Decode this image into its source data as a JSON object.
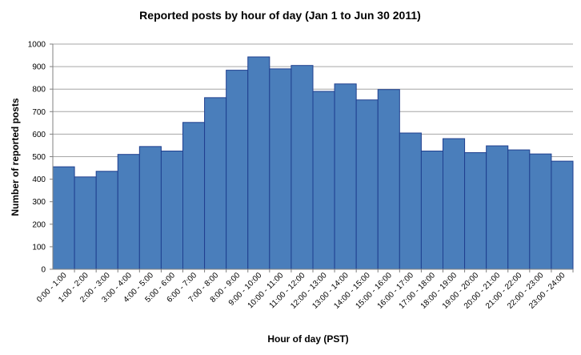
{
  "chart_data": {
    "type": "bar",
    "title": "Reported posts by hour of day (Jan 1 to Jun 30 2011)",
    "xlabel": "Hour of day (PST)",
    "ylabel": "Number of reported posts",
    "ylim": [
      0,
      1000
    ],
    "yticks": [
      "0",
      "100",
      "200",
      "300",
      "400",
      "500",
      "600",
      "700",
      "800",
      "900",
      "1000"
    ],
    "grid": true,
    "legend": "none",
    "bar_color": "#4a7ebb",
    "bar_edge_color": "#1f3f8f",
    "categories": [
      "0:00 - 1:00",
      "1:00 - 2:00",
      "2:00 - 3:00",
      "3:00 - 4:00",
      "4:00 - 5:00",
      "5:00 - 6:00",
      "6:00 - 7:00",
      "7:00 - 8:00",
      "8:00 - 9:00",
      "9:00 - 10:00",
      "10:00 - 11:00",
      "11:00 - 12:00",
      "12:00 - 13:00",
      "13:00 - 14:00",
      "14:00 - 15:00",
      "15:00 - 16:00",
      "16:00 - 17:00",
      "17:00 - 18:00",
      "18:00 - 19:00",
      "19:00 - 20:00",
      "20:00 - 21:00",
      "21:00 - 22:00",
      "22:00 - 23:00",
      "23:00 - 24:00"
    ],
    "values": [
      455,
      410,
      435,
      510,
      545,
      525,
      652,
      762,
      884,
      943,
      890,
      905,
      790,
      823,
      752,
      798,
      605,
      525,
      580,
      518,
      548,
      530,
      512,
      480
    ]
  }
}
